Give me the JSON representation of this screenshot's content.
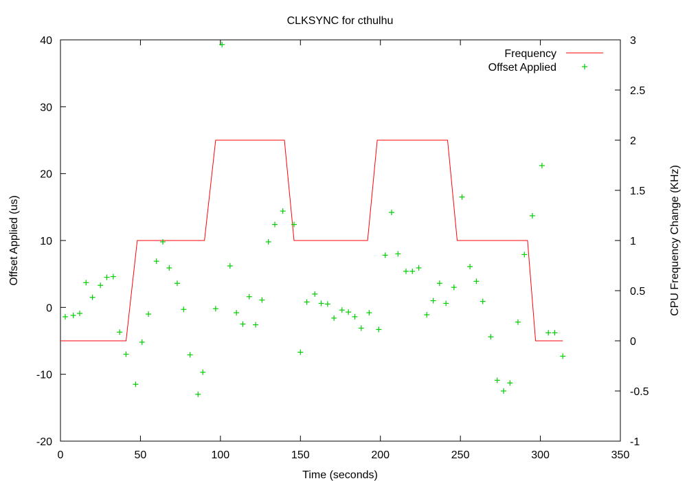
{
  "chart_data": {
    "type": "line",
    "title": "CLKSYNC for cthulhu",
    "xlabel": "Time (seconds)",
    "ylabel": "Offset Applied (us)",
    "y2label": "CPU Frequency Change (KHz)",
    "xlim": [
      0,
      350
    ],
    "ylim": [
      -20,
      40
    ],
    "y2lim": [
      -1,
      3
    ],
    "grid": false,
    "legend": "top-right",
    "x_ticks": [
      "0",
      "50",
      "100",
      "150",
      "200",
      "250",
      "300",
      "350"
    ],
    "y_ticks": [
      "-20",
      "-10",
      "0",
      "10",
      "20",
      "30",
      "40"
    ],
    "y2_ticks": [
      "-1",
      "-0.5",
      "0",
      "0.5",
      "1",
      "1.5",
      "2",
      "2.5",
      "3"
    ],
    "series": [
      {
        "name": "Frequency",
        "axis": "y2",
        "style": "line",
        "color": "#ff0000",
        "x": [
          0,
          41,
          48,
          90,
          97,
          140,
          146,
          192,
          198,
          242,
          248,
          292,
          297,
          314
        ],
        "y": [
          0,
          0,
          1,
          1,
          2,
          2,
          1,
          1,
          2,
          2,
          1,
          1,
          0,
          0
        ]
      },
      {
        "name": "Offset Applied",
        "axis": "y",
        "style": "points",
        "color": "#00cc00",
        "x": [
          3,
          8,
          12,
          16,
          20,
          25,
          29,
          33,
          37,
          41,
          47,
          51,
          55,
          60,
          64,
          68,
          73,
          77,
          81,
          86,
          89,
          97,
          101,
          106,
          110,
          114,
          118,
          122,
          126,
          130,
          134,
          139,
          146,
          150,
          154,
          159,
          163,
          167,
          171,
          176,
          180,
          184,
          188,
          193,
          199,
          203,
          207,
          211,
          216,
          220,
          224,
          229,
          233,
          237,
          241,
          246,
          251,
          256,
          260,
          264,
          269,
          273,
          277,
          281,
          286,
          290,
          295,
          301,
          305,
          309,
          314
        ],
        "y": [
          -1.4,
          -1.2,
          -0.9,
          3.7,
          1.5,
          3.3,
          4.5,
          4.6,
          -3.7,
          -7.0,
          -11.5,
          -5.2,
          -1.0,
          6.9,
          9.8,
          5.9,
          3.6,
          -0.3,
          -7.1,
          -13.0,
          -9.7,
          -0.2,
          39.3,
          6.2,
          -0.8,
          -2.5,
          1.6,
          -2.6,
          1.1,
          9.8,
          12.4,
          14.4,
          12.4,
          -6.7,
          0.8,
          2.0,
          0.6,
          0.5,
          -1.6,
          -0.4,
          -0.7,
          -1.4,
          -3.1,
          -0.8,
          -3.3,
          7.8,
          14.2,
          8.0,
          5.4,
          5.4,
          5.9,
          -1.1,
          1.0,
          3.6,
          0.6,
          3.0,
          16.5,
          6.1,
          3.9,
          0.9,
          -4.4,
          -10.9,
          -12.5,
          -11.3,
          -2.2,
          7.9,
          13.7,
          21.2,
          -3.8,
          -3.8,
          -7.3
        ]
      }
    ]
  }
}
